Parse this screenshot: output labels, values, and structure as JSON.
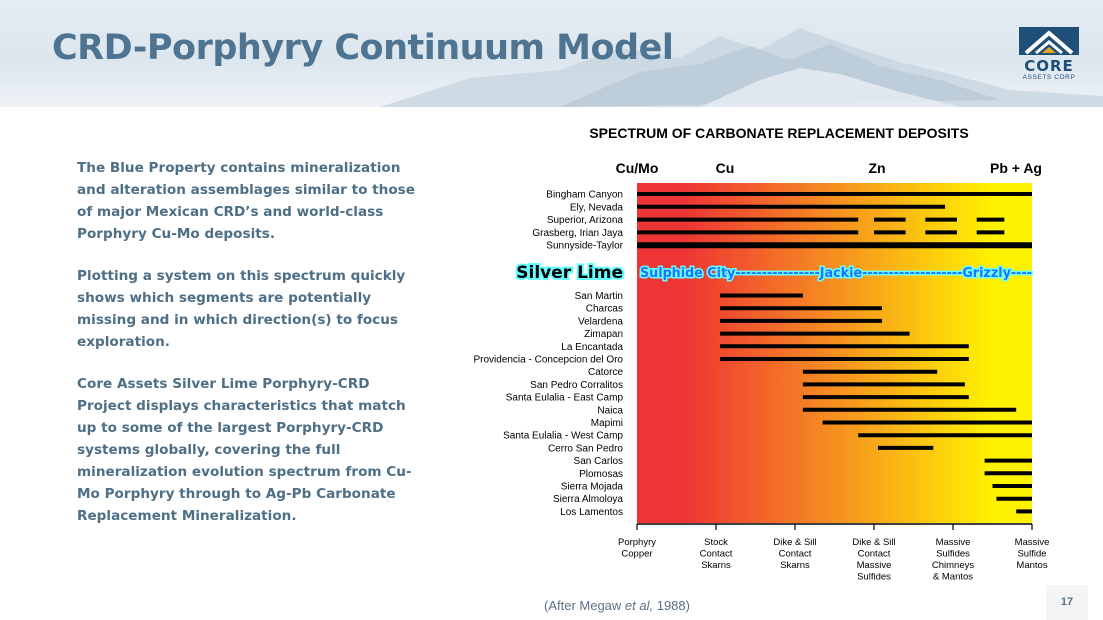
{
  "slide": {
    "title": "CRD-Porphyry Continuum Model",
    "page_number": "17",
    "logo": {
      "word": "CORE",
      "sub": "ASSETS CORP"
    },
    "paragraphs": [
      "The Blue Property contains mineralization and alteration assemblages similar to those of major Mexican CRD’s and world-class Porphyry Cu-Mo deposits.",
      "Plotting a system on this spectrum quickly shows which segments are potentially missing and in which direction(s) to focus exploration.",
      "Core Assets Silver Lime Porphyry-CRD Project displays characteristics that match up to some of the largest Porphyry-CRD systems globally, covering the full mineralization evolution spectrum from Cu-Mo Porphyry through to Ag-Pb Carbonate Replacement Mineralization."
    ],
    "citation": {
      "prefix": "(After Megaw ",
      "italic": "et al,",
      "suffix": " 1988)"
    }
  },
  "chart_data": {
    "type": "range-bar",
    "title": "SPECTRUM OF CARBONATE REPLACEMENT DEPOSITS",
    "top_labels": [
      "Cu/Mo",
      "Cu",
      "Zn",
      "Pb + Ag"
    ],
    "x_categories": [
      "Porphyry Copper",
      "Stock Contact Skarns",
      "Dike & Sill Contact Skarns",
      "Dike & Sill Contact Massive Sulfides",
      "Massive Sulfides Chimneys & Mantos",
      "Massive Sulfide Mantos"
    ],
    "x_lines": [
      [
        "Porphyry",
        "Copper"
      ],
      [
        "Stock",
        "Contact",
        "Skarns"
      ],
      [
        "Dike & Sill",
        "Contact",
        "Skarns"
      ],
      [
        "Dike & Sill",
        "Contact",
        "Massive",
        "Sulfides"
      ],
      [
        "Massive",
        "Sulfides",
        "Chimneys",
        "& Mantos"
      ],
      [
        "Massive",
        "Sulfide",
        "Mantos"
      ]
    ],
    "xlim": [
      0,
      5
    ],
    "colors": {
      "red": "#ee3535",
      "orange": "#f79b1e",
      "yellow": "#fff200",
      "bar": "#000000",
      "highlight_text": "#1e73ff",
      "highlight_glow": "#66ffff"
    },
    "highlight": {
      "name": "Silver Lime",
      "segments": [
        "Sulphide City",
        "Jackie",
        "Grizzly"
      ],
      "line": "Sulphide City----------------Jackie-------------------Grizzly----"
    },
    "porphyry_deposits": [
      {
        "name": "Bingham Canyon",
        "ranges": [
          [
            0,
            5
          ]
        ]
      },
      {
        "name": "Ely, Nevada",
        "ranges": [
          [
            0,
            3.9
          ]
        ]
      },
      {
        "name": "Superior, Arizona",
        "ranges": [
          [
            0,
            2.8
          ],
          [
            3,
            3.4
          ],
          [
            3.65,
            4.05
          ],
          [
            4.3,
            4.65
          ]
        ]
      },
      {
        "name": "Grasberg, Irian Jaya",
        "ranges": [
          [
            0,
            2.8
          ],
          [
            3,
            3.4
          ],
          [
            3.65,
            4.05
          ],
          [
            4.3,
            4.65
          ]
        ]
      },
      {
        "name": "Sunnyside-Taylor",
        "ranges": [
          [
            0,
            5
          ]
        ],
        "thick": true
      }
    ],
    "crd_deposits": [
      {
        "name": "San Martin",
        "ranges": [
          [
            1.05,
            2.1
          ]
        ]
      },
      {
        "name": "Charcas",
        "ranges": [
          [
            1.05,
            3.1
          ]
        ]
      },
      {
        "name": "Velardena",
        "ranges": [
          [
            1.05,
            3.1
          ]
        ]
      },
      {
        "name": "Zimapan",
        "ranges": [
          [
            1.05,
            3.45
          ]
        ]
      },
      {
        "name": "La Encantada",
        "ranges": [
          [
            1.05,
            4.2
          ]
        ]
      },
      {
        "name": "Providencia - Concepcion del Oro",
        "ranges": [
          [
            1.05,
            4.2
          ]
        ]
      },
      {
        "name": "Catorce",
        "ranges": [
          [
            2.1,
            3.8
          ]
        ]
      },
      {
        "name": "San Pedro Corralitos",
        "ranges": [
          [
            2.1,
            4.15
          ]
        ]
      },
      {
        "name": "Santa Eulalia - East Camp",
        "ranges": [
          [
            2.1,
            4.2
          ]
        ]
      },
      {
        "name": "Naica",
        "ranges": [
          [
            2.1,
            4.8
          ]
        ]
      },
      {
        "name": "Mapimi",
        "ranges": [
          [
            2.35,
            5
          ]
        ]
      },
      {
        "name": "Santa Eulalia - West Camp",
        "ranges": [
          [
            2.8,
            5
          ]
        ]
      },
      {
        "name": "Cerro San Pedro",
        "ranges": [
          [
            3.05,
            3.75
          ]
        ]
      },
      {
        "name": "San Carlos",
        "ranges": [
          [
            4.4,
            5
          ]
        ]
      },
      {
        "name": "Plomosas",
        "ranges": [
          [
            4.4,
            5
          ]
        ]
      },
      {
        "name": "Sierra Mojada",
        "ranges": [
          [
            4.5,
            5
          ]
        ]
      },
      {
        "name": "Sierra Almoloya",
        "ranges": [
          [
            4.55,
            5
          ]
        ]
      },
      {
        "name": "Los Lamentos",
        "ranges": [
          [
            4.8,
            5
          ]
        ]
      }
    ]
  }
}
